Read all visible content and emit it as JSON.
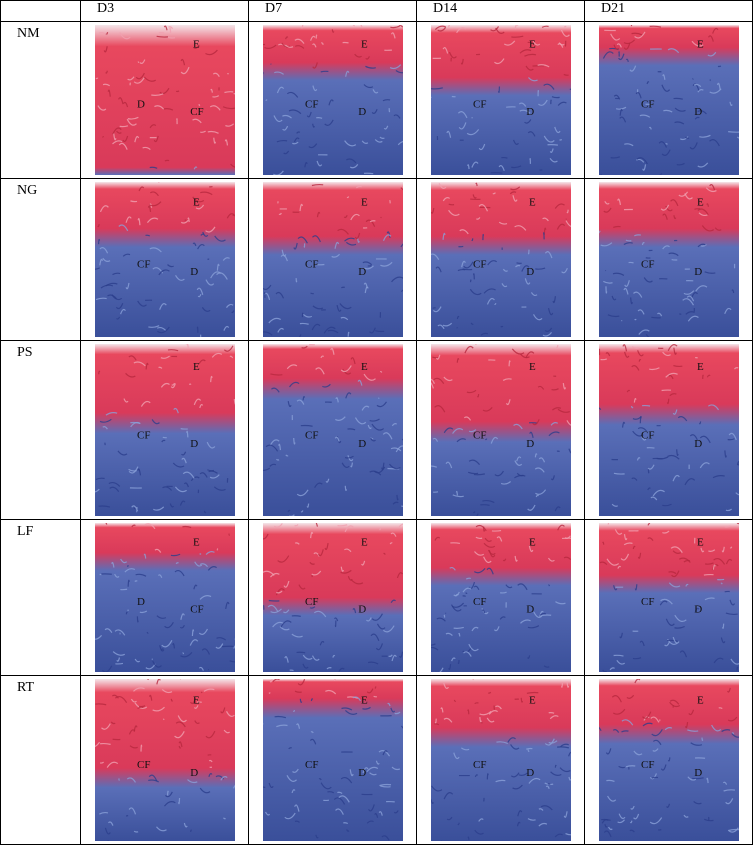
{
  "table": {
    "columns": [
      "D3",
      "D7",
      "D14",
      "D21"
    ],
    "rows": [
      {
        "label": "NM",
        "cells": [
          {
            "labels": [
              "E",
              "D",
              "CF"
            ]
          },
          {
            "labels": [
              "E",
              "CF",
              "D"
            ]
          },
          {
            "labels": [
              "E",
              "CF",
              "D"
            ]
          },
          {
            "labels": [
              "E",
              "CF",
              "D"
            ]
          }
        ]
      },
      {
        "label": "NG",
        "cells": [
          {
            "labels": [
              "E",
              "CF",
              "D"
            ]
          },
          {
            "labels": [
              "E",
              "CF",
              "D"
            ]
          },
          {
            "labels": [
              "E",
              "CF",
              "D"
            ]
          },
          {
            "labels": [
              "E",
              "CF",
              "D"
            ]
          }
        ]
      },
      {
        "label": "PS",
        "cells": [
          {
            "labels": [
              "E",
              "CF",
              "D"
            ]
          },
          {
            "labels": [
              "E",
              "CF",
              "D"
            ]
          },
          {
            "labels": [
              "E",
              "CF",
              "D"
            ]
          },
          {
            "labels": [
              "E",
              "CF",
              "D"
            ]
          }
        ]
      },
      {
        "label": "LF",
        "cells": [
          {
            "labels": [
              "E",
              "D",
              "CF"
            ]
          },
          {
            "labels": [
              "E",
              "CF",
              "D"
            ]
          },
          {
            "labels": [
              "E",
              "CF",
              "D"
            ]
          },
          {
            "labels": [
              "E",
              "CF",
              "D"
            ]
          }
        ]
      },
      {
        "label": "RT",
        "cells": [
          {
            "labels": [
              "E",
              "CF",
              "D"
            ]
          },
          {
            "labels": [
              "E",
              "CF",
              "D"
            ]
          },
          {
            "labels": [
              "E",
              "CF",
              "D"
            ]
          },
          {
            "labels": [
              "E",
              "CF",
              "D"
            ]
          }
        ]
      }
    ]
  }
}
